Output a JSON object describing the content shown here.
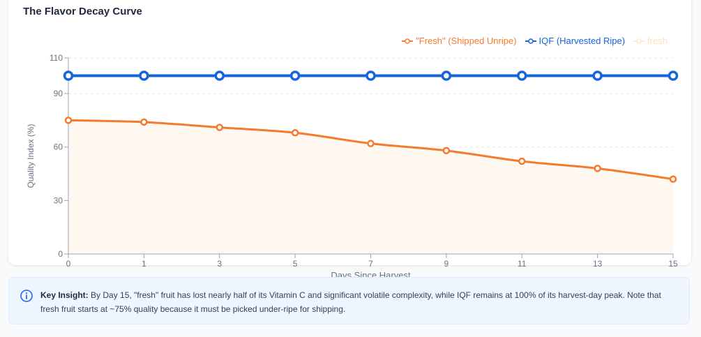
{
  "card": {
    "title": "The Flavor Decay Curve"
  },
  "chart_data": {
    "type": "line",
    "xlabel": "Days Since Harvest",
    "ylabel": "Quality Index (%)",
    "x": [
      0,
      1,
      3,
      5,
      7,
      9,
      11,
      13,
      15
    ],
    "ylim": [
      0,
      110
    ],
    "yticks": [
      0,
      30,
      60,
      90,
      110
    ],
    "grid": true,
    "legend_position": "top-right",
    "series": [
      {
        "name": "\"Fresh\" (Shipped Unripe)",
        "values": [
          75,
          74,
          71,
          68,
          62,
          58,
          52,
          48,
          42
        ],
        "color": "#f47a2e",
        "fill": "#fef8f0"
      },
      {
        "name": "IQF (Harvested Ripe)",
        "values": [
          100,
          100,
          100,
          100,
          100,
          100,
          100,
          100,
          100
        ],
        "color": "#1565d8"
      }
    ],
    "extra_legend": {
      "name": "fresh",
      "color": "#fde8c8"
    }
  },
  "insight": {
    "label": "Key Insight:",
    "text": "By Day 15, \"fresh\" fruit has lost nearly half of its Vitamin C and significant volatile complexity, while IQF remains at 100% of its harvest-day peak. Note that fresh fruit starts at ~75% quality because it must be picked under-ripe for shipping.",
    "icon": "info-icon",
    "accent": "#2563eb"
  }
}
